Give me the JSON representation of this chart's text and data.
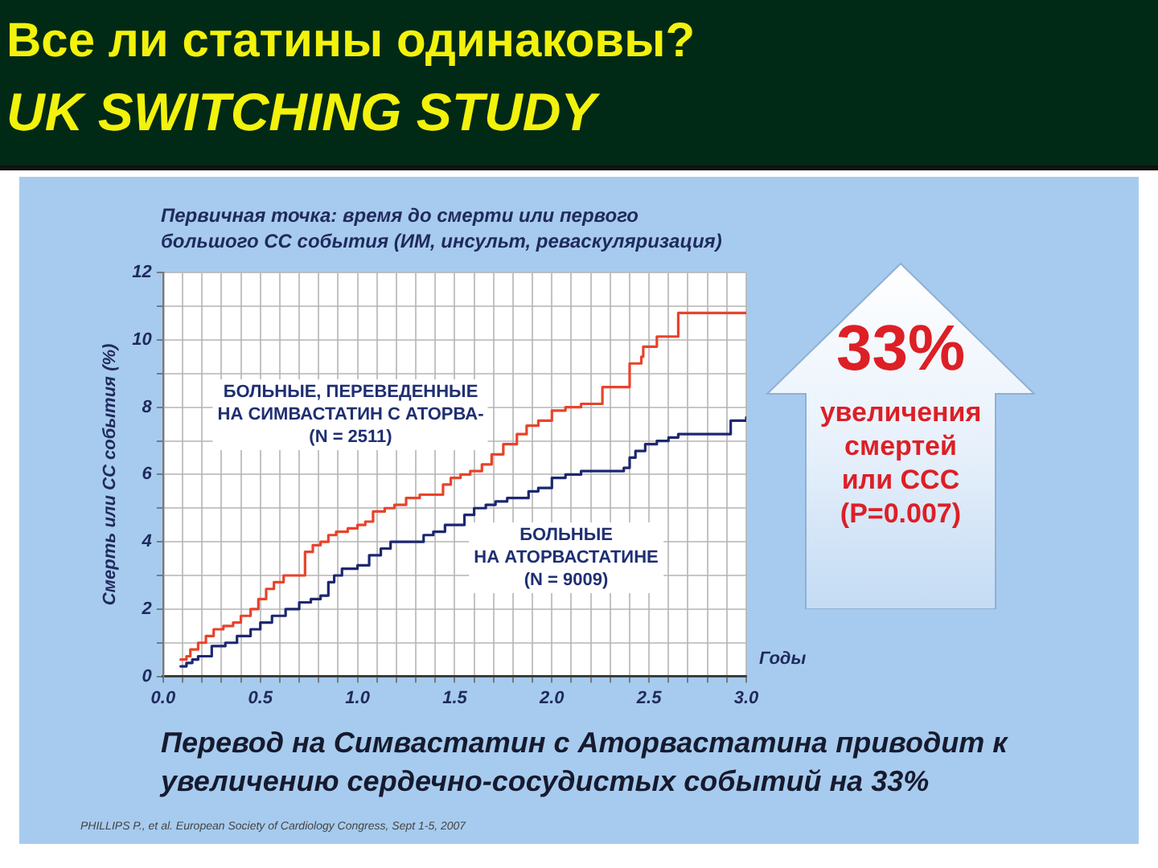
{
  "chart_data": {
    "type": "step",
    "title": "Все ли статины одинаковы?",
    "subtitle": "UK SWITCHING STUDY",
    "xlabel": "Годы",
    "ylabel": "Смерть или СС события (%)",
    "annotations": [
      "Первичная точка: время до смерти или первого\nбольшого СС события (ИМ, инсульт, реваскуляризация)",
      "33%",
      "увеличения\nсмертей\nили ССС\n(P=0.007)",
      "Перевод на Симвастатин с Аторвастатина приводит к увеличению сердечно-сосудистых событий на 33%",
      "PHILLIPS P., et al. European Society of Cardiology Congress, Sept 1-5, 2007"
    ],
    "series": [
      {
        "name": "БОЛЬНЫЕ, ПЕРЕВЕДЕННЫЕ\nНА СИМВАСТАТИН С АТОРВА-\n(N = 2511)",
        "color": "#e8432a",
        "x": [
          0.09,
          0.12,
          0.14,
          0.18,
          0.22,
          0.26,
          0.31,
          0.36,
          0.4,
          0.45,
          0.49,
          0.53,
          0.57,
          0.62,
          0.7,
          0.73,
          0.77,
          0.81,
          0.85,
          0.89,
          0.95,
          1.0,
          1.04,
          1.08,
          1.14,
          1.19,
          1.25,
          1.32,
          1.39,
          1.44,
          1.48,
          1.53,
          1.58,
          1.64,
          1.69,
          1.75,
          1.82,
          1.87,
          1.93,
          2.0,
          2.07,
          2.15,
          2.25,
          2.26,
          2.39,
          2.4,
          2.46,
          2.47,
          2.54,
          2.64,
          2.65,
          3.0
        ],
        "values": [
          0.5,
          0.6,
          0.8,
          1.0,
          1.2,
          1.4,
          1.5,
          1.6,
          1.8,
          2.0,
          2.3,
          2.6,
          2.8,
          3.0,
          3.0,
          3.7,
          3.9,
          4.0,
          4.2,
          4.3,
          4.4,
          4.5,
          4.6,
          4.9,
          5.0,
          5.1,
          5.3,
          5.4,
          5.4,
          5.7,
          5.9,
          6.0,
          6.1,
          6.3,
          6.6,
          6.9,
          7.2,
          7.45,
          7.6,
          7.9,
          8.0,
          8.1,
          8.1,
          8.6,
          8.6,
          9.3,
          9.5,
          9.8,
          10.1,
          10.1,
          10.8,
          10.8
        ]
      },
      {
        "name": "БОЛЬНЫЕ\nНА АТОРВАСТАТИНЕ\n(N = 9009)",
        "color": "#1d2770",
        "x": [
          0.09,
          0.12,
          0.15,
          0.18,
          0.25,
          0.32,
          0.38,
          0.45,
          0.5,
          0.56,
          0.63,
          0.7,
          0.76,
          0.81,
          0.85,
          0.88,
          0.92,
          1.0,
          1.06,
          1.12,
          1.17,
          1.28,
          1.34,
          1.39,
          1.45,
          1.5,
          1.55,
          1.6,
          1.66,
          1.71,
          1.77,
          1.82,
          1.88,
          1.93,
          2.0,
          2.07,
          2.15,
          2.29,
          2.37,
          2.4,
          2.43,
          2.48,
          2.54,
          2.6,
          2.65,
          2.87,
          2.92,
          3.0
        ],
        "values": [
          0.3,
          0.4,
          0.5,
          0.6,
          0.9,
          1.0,
          1.2,
          1.4,
          1.6,
          1.8,
          2.0,
          2.2,
          2.3,
          2.4,
          2.8,
          3.0,
          3.2,
          3.3,
          3.6,
          3.8,
          4.0,
          4.0,
          4.2,
          4.3,
          4.5,
          4.5,
          4.8,
          5.0,
          5.1,
          5.2,
          5.3,
          5.3,
          5.5,
          5.6,
          5.9,
          6.0,
          6.1,
          6.1,
          6.2,
          6.5,
          6.7,
          6.9,
          7.0,
          7.1,
          7.2,
          7.2,
          7.6,
          7.7
        ]
      }
    ],
    "xlim": [
      0,
      3
    ],
    "ylim": [
      0,
      12
    ],
    "xticks": [
      {
        "value": 0,
        "label": "0.0"
      },
      {
        "value": 0.1,
        "label": null
      },
      {
        "value": 0.2,
        "label": null
      },
      {
        "value": 0.3,
        "label": null
      },
      {
        "value": 0.4,
        "label": null
      },
      {
        "value": 0.5,
        "label": "0.5"
      },
      {
        "value": 0.6,
        "label": null
      },
      {
        "value": 0.7,
        "label": null
      },
      {
        "value": 0.8,
        "label": null
      },
      {
        "value": 0.9,
        "label": null
      },
      {
        "value": 1,
        "label": "1.0"
      },
      {
        "value": 1.1,
        "label": null
      },
      {
        "value": 1.2,
        "label": null
      },
      {
        "value": 1.3,
        "label": null
      },
      {
        "value": 1.4,
        "label": null
      },
      {
        "value": 1.5,
        "label": "1.5"
      },
      {
        "value": 1.6,
        "label": null
      },
      {
        "value": 1.7,
        "label": null
      },
      {
        "value": 1.8,
        "label": null
      },
      {
        "value": 1.9,
        "label": null
      },
      {
        "value": 2,
        "label": "2.0"
      },
      {
        "value": 2.1,
        "label": null
      },
      {
        "value": 2.2,
        "label": null
      },
      {
        "value": 2.3,
        "label": null
      },
      {
        "value": 2.4,
        "label": null
      },
      {
        "value": 2.5,
        "label": "2.5"
      },
      {
        "value": 2.6,
        "label": null
      },
      {
        "value": 2.7,
        "label": null
      },
      {
        "value": 2.8,
        "label": null
      },
      {
        "value": 2.9,
        "label": null
      },
      {
        "value": 3,
        "label": "3.0"
      }
    ],
    "yticks": [
      0,
      {
        "value": 1,
        "label": null
      },
      2,
      {
        "value": 3,
        "label": null
      },
      4,
      {
        "value": 5,
        "label": null
      },
      6,
      {
        "value": 7,
        "label": null
      },
      8,
      {
        "value": 9,
        "label": null
      },
      10,
      {
        "value": 11,
        "label": null
      },
      12
    ],
    "grid": true
  }
}
